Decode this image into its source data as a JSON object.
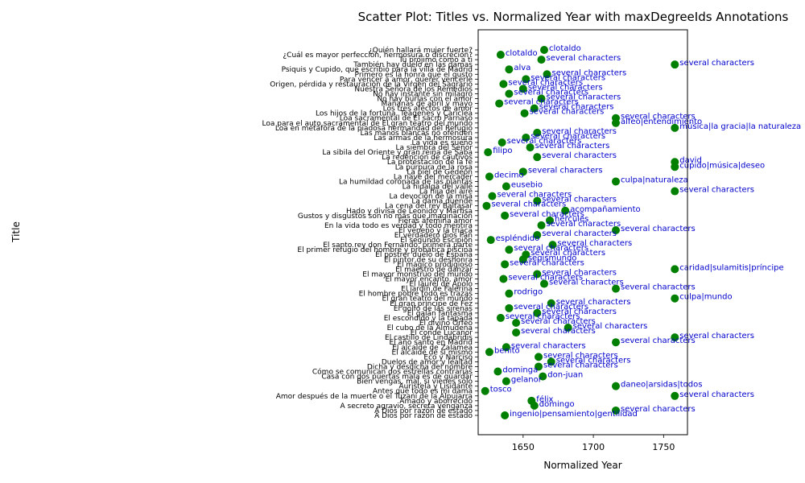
{
  "chart_data": {
    "type": "scatter",
    "title": "Scatter Plot: Titles vs. Normalized Year with maxDegreeIds Annotations",
    "xlabel": "Normalized Year",
    "ylabel": "Title",
    "xlim": [
      1618,
      1767
    ],
    "xticks": [
      1650,
      1700,
      1750
    ],
    "point_color": "#007f00",
    "annotation_color": "#0000cc",
    "grid": false,
    "points": [
      {
        "title": "¿Quién hallará mujer fuerte?",
        "x": 1665,
        "label": "clotaldo"
      },
      {
        "title": "¿Cuál es mayor perfección, hermosura o discreción?",
        "x": 1634,
        "label": "clotaldo"
      },
      {
        "title": "Tu prójimo como a ti",
        "x": 1663,
        "label": "several characters"
      },
      {
        "title": "También hay duelo en las damas",
        "x": 1758,
        "label": "several characters"
      },
      {
        "title": "Psiquis y Cupido, que escribió para la villa de Madrid",
        "x": 1640,
        "label": "alva"
      },
      {
        "title": "Primero es la honra que el gusto",
        "x": 1667,
        "label": "several characters"
      },
      {
        "title": "Para vencer a amor, querer vencerle",
        "x": 1652,
        "label": "several characters"
      },
      {
        "title": "Origen, pérdida y restauración de la Virgen del Sagrario",
        "x": 1636,
        "label": "several characters"
      },
      {
        "title": "Nuestra Señora de los Remedios",
        "x": 1650,
        "label": "several characters"
      },
      {
        "title": "No hay instante sin milagro",
        "x": 1640,
        "label": "several characters"
      },
      {
        "title": "No hay burlas con el amor",
        "x": 1663,
        "label": "several characters"
      },
      {
        "title": "Mañanas de abril y mayo",
        "x": 1633,
        "label": "several characters"
      },
      {
        "title": "Los tres afectos de amor",
        "x": 1658,
        "label": "several characters"
      },
      {
        "title": "Los hijos de la fortuna, Teágenes y Cariclea",
        "x": 1651,
        "label": "several characters"
      },
      {
        "title": "Loa sacramental de El sacro Parnaso",
        "x": 1716,
        "label": "several characters"
      },
      {
        "title": "Loa para el auto sacramental de El gran teatro del mundo",
        "x": 1716,
        "label": "alfeo|entendimiento"
      },
      {
        "title": "Loa en metáfora de la piadosa hermandad del Refugio",
        "x": 1758,
        "label": "música|la gracia|la naturaleza"
      },
      {
        "title": "Las manos blancas no ofenden",
        "x": 1660,
        "label": "several characters"
      },
      {
        "title": "Las armas de la hermosura",
        "x": 1652,
        "label": "several characters"
      },
      {
        "title": "La vida es sueño",
        "x": 1635,
        "label": "several characters"
      },
      {
        "title": "La siembra del Señor",
        "x": 1655,
        "label": "several characters"
      },
      {
        "title": "La sibila del Oriente y gran reina de Saba",
        "x": 1625,
        "label": "filipo"
      },
      {
        "title": "La redención de cautivos",
        "x": 1660,
        "label": "several characters"
      },
      {
        "title": "La protestación de la fe",
        "x": 1758,
        "label": "david"
      },
      {
        "title": "La púrpura de la rosa",
        "x": 1758,
        "label": "cupido|música|deseo"
      },
      {
        "title": "La piel de Gedeón",
        "x": 1650,
        "label": "several characters"
      },
      {
        "title": "La nave del mercader",
        "x": 1626,
        "label": "decimo"
      },
      {
        "title": "La humildad coronada de las plantas",
        "x": 1716,
        "label": "culpa|naturaleza"
      },
      {
        "title": "La hidalga del valle",
        "x": 1638,
        "label": "eusebio"
      },
      {
        "title": "La hija del aire",
        "x": 1758,
        "label": "several characters"
      },
      {
        "title": "La devoción de la misa",
        "x": 1628,
        "label": "several characters"
      },
      {
        "title": "La dama duende",
        "x": 1660,
        "label": "several characters"
      },
      {
        "title": "La cena del rey Baltasar",
        "x": 1624,
        "label": "several characters"
      },
      {
        "title": "Hado y divisa de Leonido y Marfisa",
        "x": 1680,
        "label": "acompañamiento"
      },
      {
        "title": "Gustos y disgustos son no más que imaginación",
        "x": 1637,
        "label": "several characters"
      },
      {
        "title": "Fieras afemina amor",
        "x": 1669,
        "label": "hércules"
      },
      {
        "title": "En la vida todo es verdad y todo mentira",
        "x": 1663,
        "label": "several characters"
      },
      {
        "title": "El veneno y la triaca",
        "x": 1716,
        "label": "several characters"
      },
      {
        "title": "El verdadero dios Pan",
        "x": 1660,
        "label": "several characters"
      },
      {
        "title": "El segundo Escipión",
        "x": 1627,
        "label": "espléndido"
      },
      {
        "title": "El santo rey don Fernando, primera parte",
        "x": 1671,
        "label": "several characters"
      },
      {
        "title": "El primer refugio del hombre y probática piscina",
        "x": 1640,
        "label": "several characters"
      },
      {
        "title": "El postrer duelo de España",
        "x": 1652,
        "label": "several characters"
      },
      {
        "title": "El pintor de su deshonra",
        "x": 1650,
        "label": "segismundo"
      },
      {
        "title": "El mágico prodigioso",
        "x": 1637,
        "label": "several characters"
      },
      {
        "title": "El maestro de danzar",
        "x": 1758,
        "label": "caridad|sulamitis|príncipe"
      },
      {
        "title": "El mayor monstruo del mundo",
        "x": 1660,
        "label": "several characters"
      },
      {
        "title": "El mayor encanto, amor",
        "x": 1636,
        "label": "several characters"
      },
      {
        "title": "El laurel de Apolo",
        "x": 1665,
        "label": "several characters"
      },
      {
        "title": "El jardín de Falerina",
        "x": 1716,
        "label": "several characters"
      },
      {
        "title": "El hombre pobre todo es trazas",
        "x": 1640,
        "label": "rodrigo"
      },
      {
        "title": "El gran teatro del mundo",
        "x": 1758,
        "label": "culpa|mundo"
      },
      {
        "title": "El gran príncipe de Fez",
        "x": 1670,
        "label": "several characters"
      },
      {
        "title": "El golfo de las sirenas",
        "x": 1640,
        "label": "several characters"
      },
      {
        "title": "El galán fantasma",
        "x": 1660,
        "label": "several characters"
      },
      {
        "title": "El escondido y la tapada",
        "x": 1634,
        "label": "several characters"
      },
      {
        "title": "El divino Orfeo",
        "x": 1645,
        "label": "several characters"
      },
      {
        "title": "El cubo de la Almudena",
        "x": 1682,
        "label": "several characters"
      },
      {
        "title": "El conde Lucanor",
        "x": 1645,
        "label": "several characters"
      },
      {
        "title": "El castillo de Lindabridis",
        "x": 1758,
        "label": "several characters"
      },
      {
        "title": "El año santo en Madrid",
        "x": 1716,
        "label": "several characters"
      },
      {
        "title": "El alcalde de Zalamea",
        "x": 1638,
        "label": "several characters"
      },
      {
        "title": "El alcaide de sí mismo",
        "x": 1626,
        "label": "benito"
      },
      {
        "title": "Eco y Narciso",
        "x": 1661,
        "label": "several characters"
      },
      {
        "title": "Duelos de amor y lealtad",
        "x": 1670,
        "label": "several characters"
      },
      {
        "title": "Dicha y desdicha del nombre",
        "x": 1661,
        "label": "several characters"
      },
      {
        "title": "Cómo se comunican dos estrellas contrarias",
        "x": 1632,
        "label": "dominga"
      },
      {
        "title": "Casa con dos puertas mala es de guardar",
        "x": 1664,
        "label": "don-juan"
      },
      {
        "title": "Bien vengas, mal, si vienes solo",
        "x": 1638,
        "label": "gelanor"
      },
      {
        "title": "Auristela y Lisidante",
        "x": 1716,
        "label": "daneo|arsidas|todos"
      },
      {
        "title": "Antes que todo es mi dama",
        "x": 1623,
        "label": "tosco"
      },
      {
        "title": "Amor después de la muerte o el Tuzaní de la Alpujarra",
        "x": 1758,
        "label": "several characters"
      },
      {
        "title": "Amado y aborrecido",
        "x": 1656,
        "label": "félix"
      },
      {
        "title": "A secreto agravio, secreta venganza",
        "x": 1658,
        "label": "domingo"
      },
      {
        "title": "A Dios por razón de estado",
        "x": 1716,
        "label": "several characters"
      },
      {
        "title": "A Dios por razón de estado ",
        "x": 1637,
        "label": "ingenio|pensamiento|gentilidad"
      }
    ]
  }
}
